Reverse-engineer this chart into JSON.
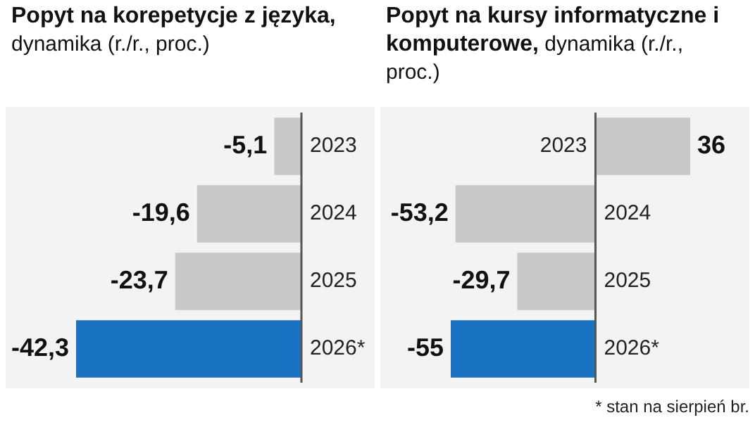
{
  "chart_data": [
    {
      "type": "bar",
      "orientation": "horizontal",
      "title": "Popyt na korepetycje z języka,",
      "subtitle": "dynamika (r./r., proc.)",
      "categories": [
        "2023",
        "2024",
        "2025",
        "2026*"
      ],
      "values": [
        -5.1,
        -19.6,
        -23.7,
        -42.3
      ],
      "colors": [
        "#c8c8c8",
        "#c8c8c8",
        "#c8c8c8",
        "#1a72c2"
      ],
      "value_labels": [
        "-5,1",
        "-19,6",
        "-23,7",
        "-42,3"
      ]
    },
    {
      "type": "bar",
      "orientation": "horizontal",
      "title": "Popyt na kursy informatyczne i komputerowe,",
      "subtitle": "dynamika (r./r., proc.)",
      "categories": [
        "2023",
        "2024",
        "2025",
        "2026*"
      ],
      "values": [
        36,
        -53.2,
        -29.7,
        -55
      ],
      "colors": [
        "#c8c8c8",
        "#c8c8c8",
        "#c8c8c8",
        "#1a72c2"
      ],
      "value_labels": [
        "36",
        "-53,2",
        "-29,7",
        "-55"
      ],
      "annotations": [
        "* stan na sierpień br."
      ]
    }
  ]
}
